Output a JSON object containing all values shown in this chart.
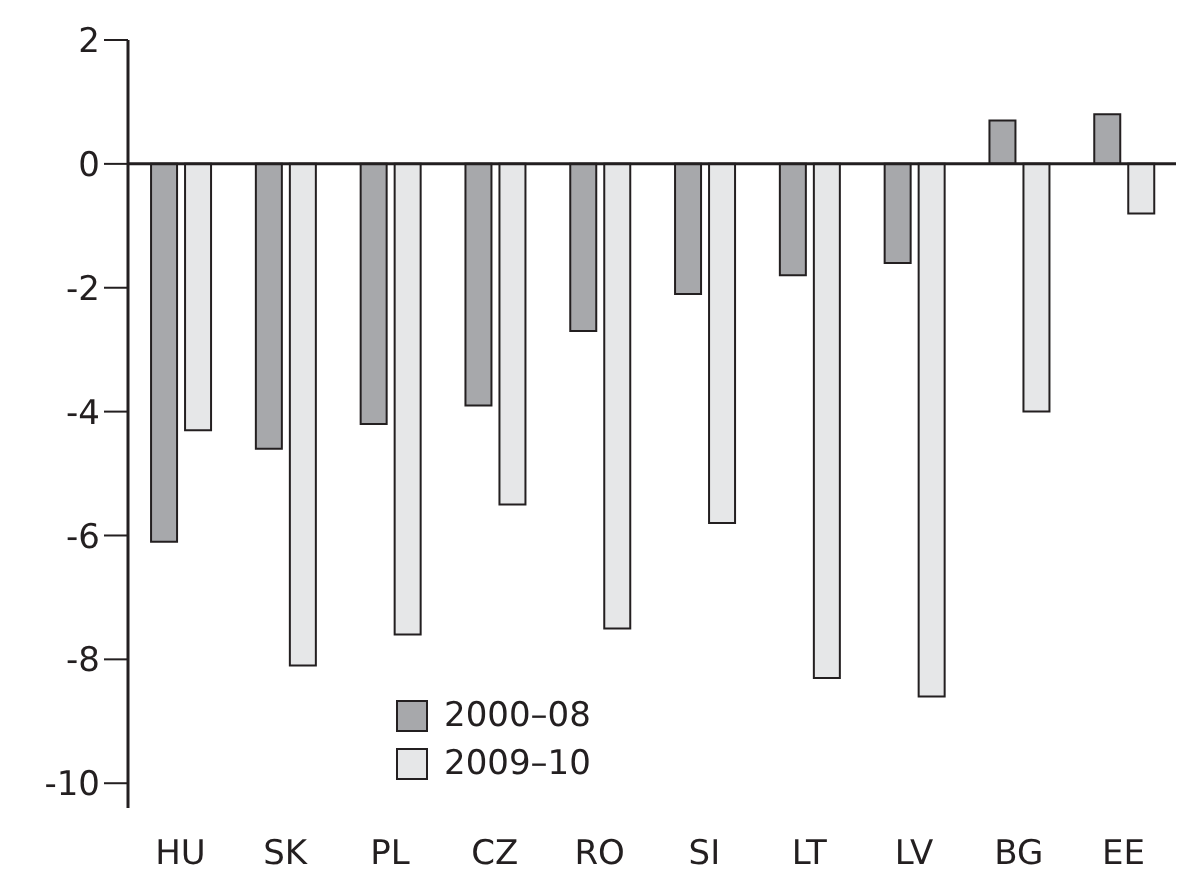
{
  "chart_data": {
    "type": "bar",
    "categories": [
      "HU",
      "SK",
      "PL",
      "CZ",
      "RO",
      "SI",
      "LT",
      "LV",
      "BG",
      "EE"
    ],
    "series": [
      {
        "name": "2000–08",
        "color": "#a7a8ab",
        "values": [
          -6.1,
          -4.6,
          -4.2,
          -3.9,
          -2.7,
          -2.1,
          -1.8,
          -1.6,
          0.7,
          0.8
        ]
      },
      {
        "name": "2009–10",
        "color": "#e6e7e8",
        "values": [
          -4.3,
          -8.1,
          -7.6,
          -5.5,
          -7.5,
          -5.8,
          -8.3,
          -8.6,
          -4.0,
          -0.8
        ]
      }
    ],
    "ylim": [
      -10.4,
      2
    ],
    "yticks": [
      2,
      0,
      -2,
      -4,
      -6,
      -8,
      -10
    ],
    "legend": "bottom"
  }
}
